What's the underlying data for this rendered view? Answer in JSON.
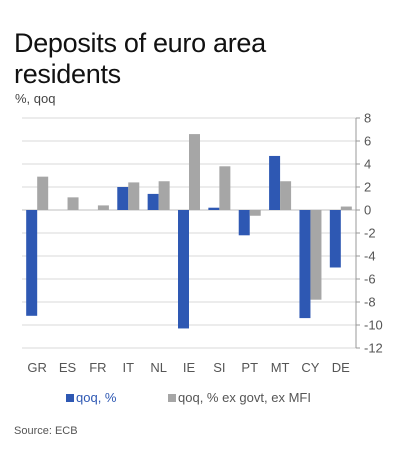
{
  "title_line1": "Deposits of euro area",
  "title_line2": "residents",
  "subtitle": "%, qoq",
  "source": "Source: ECB",
  "colors": {
    "series1": "#2e58b3",
    "series2": "#a6a6a6",
    "text_series1": "#2e58b3",
    "axis_text": "#555555",
    "grid": "#d9d9d9",
    "zero_line": "#bfbfbf"
  },
  "chart_data": {
    "type": "bar",
    "categories": [
      "GR",
      "ES",
      "FR",
      "IT",
      "NL",
      "IE",
      "SI",
      "PT",
      "MT",
      "CY",
      "DE"
    ],
    "series": [
      {
        "name": "qoq, %",
        "values": [
          -9.2,
          0.0,
          0.0,
          2.0,
          1.4,
          -10.3,
          0.2,
          -2.2,
          4.7,
          -9.4,
          -5.0
        ]
      },
      {
        "name": "qoq, % ex govt, ex MFI",
        "values": [
          2.9,
          1.1,
          0.4,
          2.4,
          2.5,
          6.6,
          3.8,
          -0.5,
          2.5,
          -7.8,
          0.3
        ]
      }
    ],
    "ylim": [
      -12,
      8
    ],
    "yticks": [
      8,
      6,
      4,
      2,
      0,
      -2,
      -4,
      -6,
      -8,
      -10,
      -12
    ],
    "grid": true,
    "legend_position": "bottom",
    "y_axis_side": "right"
  }
}
